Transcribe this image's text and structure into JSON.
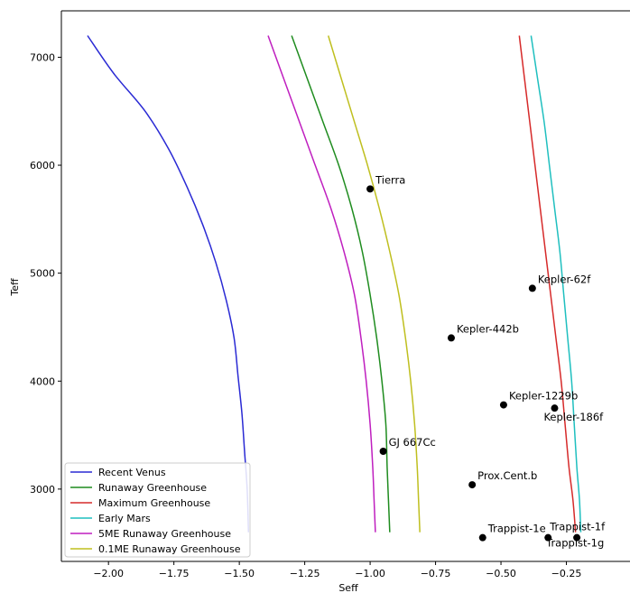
{
  "chart_data": {
    "type": "line",
    "xlabel": "Seff",
    "ylabel": "Teff",
    "xlim": [
      -2.18,
      0.0
    ],
    "ylim": [
      2330,
      7430
    ],
    "xticks": [
      {
        "value": -2.0,
        "label": "−2.00"
      },
      {
        "value": -1.75,
        "label": "−1.75"
      },
      {
        "value": -1.5,
        "label": "−1.50"
      },
      {
        "value": -1.25,
        "label": "−1.25"
      },
      {
        "value": -1.0,
        "label": "−1.00"
      },
      {
        "value": -0.75,
        "label": "−0.75"
      },
      {
        "value": -0.5,
        "label": "−0.50"
      },
      {
        "value": -0.25,
        "label": "−0.25"
      }
    ],
    "yticks": [
      {
        "value": 3000,
        "label": "3000"
      },
      {
        "value": 4000,
        "label": "4000"
      },
      {
        "value": 5000,
        "label": "5000"
      },
      {
        "value": 6000,
        "label": "6000"
      },
      {
        "value": 7000,
        "label": "7000"
      }
    ],
    "grid": false,
    "legend_position": "lower-left",
    "series": [
      {
        "name": "Recent Venus",
        "color": "#2a2ad4",
        "points": [
          [
            -2.08,
            7200
          ],
          [
            -1.98,
            6850
          ],
          [
            -1.86,
            6500
          ],
          [
            -1.77,
            6150
          ],
          [
            -1.7,
            5800
          ],
          [
            -1.64,
            5450
          ],
          [
            -1.59,
            5100
          ],
          [
            -1.55,
            4750
          ],
          [
            -1.52,
            4400
          ],
          [
            -1.505,
            4050
          ],
          [
            -1.49,
            3700
          ],
          [
            -1.48,
            3350
          ],
          [
            -1.47,
            3000
          ],
          [
            -1.465,
            2600
          ]
        ]
      },
      {
        "name": "Runaway Greenhouse",
        "color": "#1f8c1f",
        "points": [
          [
            -1.3,
            7200
          ],
          [
            -1.24,
            6800
          ],
          [
            -1.18,
            6400
          ],
          [
            -1.12,
            6000
          ],
          [
            -1.07,
            5600
          ],
          [
            -1.03,
            5200
          ],
          [
            -1.0,
            4800
          ],
          [
            -0.975,
            4400
          ],
          [
            -0.955,
            4000
          ],
          [
            -0.94,
            3600
          ],
          [
            -0.935,
            3200
          ],
          [
            -0.93,
            2900
          ],
          [
            -0.925,
            2600
          ]
        ]
      },
      {
        "name": "Maximum Greenhouse",
        "color": "#d62a2a",
        "points": [
          [
            -0.43,
            7200
          ],
          [
            -0.41,
            6800
          ],
          [
            -0.39,
            6400
          ],
          [
            -0.37,
            6000
          ],
          [
            -0.35,
            5600
          ],
          [
            -0.33,
            5200
          ],
          [
            -0.31,
            4800
          ],
          [
            -0.29,
            4400
          ],
          [
            -0.27,
            4000
          ],
          [
            -0.255,
            3600
          ],
          [
            -0.24,
            3200
          ],
          [
            -0.225,
            2900
          ],
          [
            -0.215,
            2600
          ]
        ]
      },
      {
        "name": "Early Mars",
        "color": "#1fbfbf",
        "points": [
          [
            -0.385,
            7200
          ],
          [
            -0.36,
            6800
          ],
          [
            -0.335,
            6400
          ],
          [
            -0.315,
            6000
          ],
          [
            -0.295,
            5600
          ],
          [
            -0.275,
            5200
          ],
          [
            -0.26,
            4800
          ],
          [
            -0.245,
            4400
          ],
          [
            -0.23,
            4000
          ],
          [
            -0.22,
            3600
          ],
          [
            -0.21,
            3200
          ],
          [
            -0.2,
            2900
          ],
          [
            -0.195,
            2600
          ]
        ]
      },
      {
        "name": "5ME Runaway Greenhouse",
        "color": "#bf1fbf",
        "points": [
          [
            -1.39,
            7200
          ],
          [
            -1.33,
            6800
          ],
          [
            -1.27,
            6400
          ],
          [
            -1.21,
            6000
          ],
          [
            -1.15,
            5600
          ],
          [
            -1.1,
            5200
          ],
          [
            -1.06,
            4800
          ],
          [
            -1.035,
            4400
          ],
          [
            -1.015,
            4000
          ],
          [
            -1.0,
            3600
          ],
          [
            -0.99,
            3200
          ],
          [
            -0.985,
            2900
          ],
          [
            -0.98,
            2600
          ]
        ]
      },
      {
        "name": "0.1ME Runaway Greenhouse",
        "color": "#bfbf1f",
        "points": [
          [
            -1.16,
            7200
          ],
          [
            -1.11,
            6800
          ],
          [
            -1.06,
            6400
          ],
          [
            -1.01,
            6000
          ],
          [
            -0.965,
            5600
          ],
          [
            -0.925,
            5200
          ],
          [
            -0.89,
            4800
          ],
          [
            -0.865,
            4400
          ],
          [
            -0.845,
            4000
          ],
          [
            -0.83,
            3600
          ],
          [
            -0.82,
            3200
          ],
          [
            -0.815,
            2900
          ],
          [
            -0.81,
            2600
          ]
        ]
      }
    ],
    "points": [
      {
        "label": "Tierra",
        "x": -1.0,
        "y": 5780
      },
      {
        "label": "Kepler-62f",
        "x": -0.38,
        "y": 4860
      },
      {
        "label": "Kepler-442b",
        "x": -0.69,
        "y": 4400
      },
      {
        "label": "Kepler-1229b",
        "x": -0.49,
        "y": 3780
      },
      {
        "label": "Kepler-186f",
        "x": -0.295,
        "y": 3750
      },
      {
        "label": "GJ 667Cc",
        "x": -0.95,
        "y": 3350
      },
      {
        "label": "Prox.Cent.b",
        "x": -0.61,
        "y": 3040
      },
      {
        "label": "Trappist-1e",
        "x": -0.57,
        "y": 2550
      },
      {
        "label": "Trappist-1f",
        "x": -0.32,
        "y": 2550
      },
      {
        "label": "Trappist-1g",
        "x": -0.21,
        "y": 2550
      }
    ]
  }
}
